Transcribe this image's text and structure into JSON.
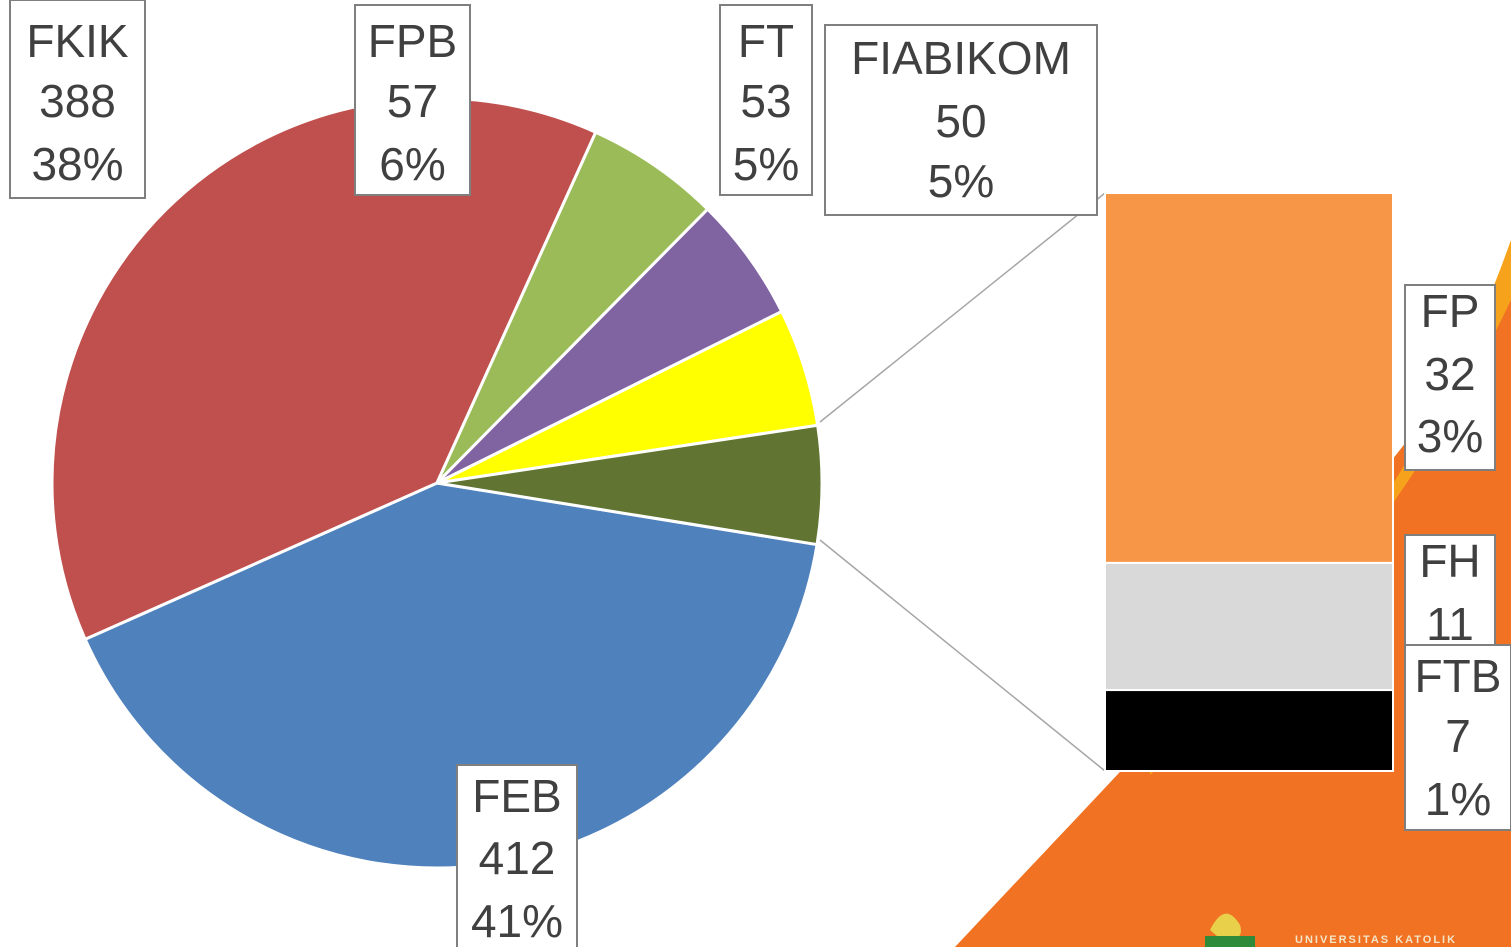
{
  "chart_data": {
    "type": "pie",
    "categories": [
      "FEB",
      "FKIK",
      "FPB",
      "FT",
      "FIABIKOM",
      null
    ],
    "values": [
      412,
      388,
      57,
      53,
      50,
      50
    ],
    "value_labels": [
      "41%",
      "38%",
      "6%",
      "5%",
      "5%",
      null
    ],
    "colors": [
      "#4f81bd",
      "#c0504d",
      "#9bbb59",
      "#8064a2",
      "#ffff00",
      "#617431"
    ],
    "secondary": {
      "type": "bar",
      "categories": [
        "FP",
        "FH",
        "FTB"
      ],
      "values": [
        32,
        11,
        7
      ],
      "value_labels": [
        "3%",
        null,
        "1%"
      ],
      "colors": [
        "#f79646",
        "#d9d9d9",
        "#000000"
      ]
    }
  },
  "branding": {
    "footer": "UNIVERSITAS KATOLIK"
  }
}
